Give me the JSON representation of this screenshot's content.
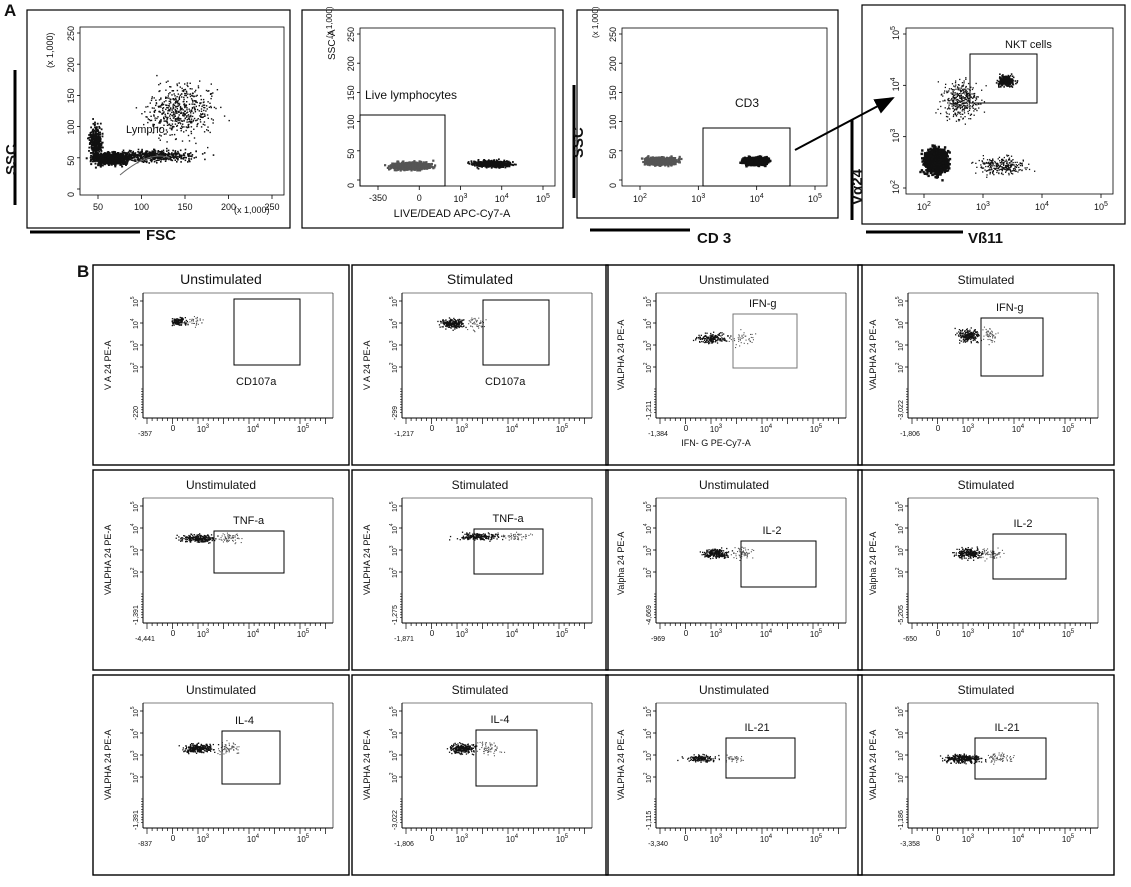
{
  "panel_a": {
    "letter": "A",
    "plots": [
      {
        "id": "a1",
        "top_tick": "250",
        "scale_y": "(x 1,000)",
        "scale_x": "(x 1,000)",
        "y_ticks": [
          "250",
          "200",
          "150",
          "100",
          "50",
          "0"
        ],
        "x_ticks": [
          "50",
          "100",
          "150",
          "200",
          "250"
        ],
        "gate_label": "Lympho",
        "outer_y": "SSC",
        "outer_x": "FSC"
      },
      {
        "id": "a2",
        "scale_y": "(x 1,000)",
        "y_title": "SSC-A",
        "y_ticks": [
          "250",
          "200",
          "150",
          "100",
          "50",
          "0"
        ],
        "x_ticks": [
          "-350",
          "0",
          "10",
          "10",
          "10"
        ],
        "x_exps": [
          "",
          "",
          "3",
          "4",
          "5"
        ],
        "x_title": "LIVE/DEAD APC-Cy7-A",
        "gate_label": "Live lymphocytes"
      },
      {
        "id": "a3",
        "scale_y": "(x 1,000)",
        "y_ticks": [
          "250",
          "200",
          "150",
          "100",
          "50",
          "0"
        ],
        "x_ticks": [
          "10",
          "10",
          "10",
          "10"
        ],
        "x_exps": [
          "2",
          "3",
          "4",
          "5"
        ],
        "gate_label": "CD3",
        "outer_y": "SSC",
        "outer_x": "CD 3"
      },
      {
        "id": "a4",
        "y_ticks": [
          "10",
          "10",
          "10",
          "10"
        ],
        "y_exps": [
          "5",
          "4",
          "3",
          "2"
        ],
        "x_ticks": [
          "10",
          "10",
          "10",
          "10"
        ],
        "x_exps": [
          "2",
          "3",
          "4",
          "5"
        ],
        "gate_label": "NKT cells",
        "outer_y": "Vα24",
        "outer_x": "Vß11"
      }
    ]
  },
  "panel_b": {
    "letter": "B",
    "plots": [
      {
        "title": "Unstimulated",
        "gate": "CD107a",
        "y_title": "V A 24 PE-A",
        "y_bottom": "-220",
        "x_left": "-357",
        "x_title": ""
      },
      {
        "title": "Stimulated",
        "gate": "CD107a",
        "y_title": "V A 24 PE-A",
        "y_bottom": "-299",
        "x_left": "-1,217",
        "x_title": ""
      },
      {
        "title": "Unstimulated",
        "gate": "IFN-g",
        "y_title": "VALPHA 24 PE-A",
        "y_bottom": "-1,211",
        "x_left": "-1,384",
        "x_title": "IFN- G PE-Cy7-A"
      },
      {
        "title": "Stimulated",
        "gate": "IFN-g",
        "y_title": "VALPHA 24 PE-A",
        "y_bottom": "-3,022",
        "x_left": "-1,806",
        "x_title": ""
      },
      {
        "title": "Unstimulated",
        "gate": "TNF-a",
        "y_title": "VALPHA 24 PE-A",
        "y_bottom": "-1,391",
        "x_left": "-4,441",
        "x_title": ""
      },
      {
        "title": "Stimulated",
        "gate": "TNF-a",
        "y_title": "VALPHA 24 PE-A",
        "y_bottom": "-1,275",
        "x_left": "-1,871",
        "x_title": ""
      },
      {
        "title": "Unstimulated",
        "gate": "IL-2",
        "y_title": "Valpha 24 PE-A",
        "y_bottom": "-4,669",
        "x_left": "-969",
        "x_title": ""
      },
      {
        "title": "Stimulated",
        "gate": "IL-2",
        "y_title": "Valpha 24 PE-A",
        "y_bottom": "-5,205",
        "x_left": "-650",
        "x_title": ""
      },
      {
        "title": "Unstimulated",
        "gate": "IL-4",
        "y_title": "VALPHA 24 PE-A",
        "y_bottom": "-1,391",
        "x_left": "-837",
        "x_title": ""
      },
      {
        "title": "Stimulated",
        "gate": "IL-4",
        "y_title": "VALPHA 24 PE-A",
        "y_bottom": "-3,022",
        "x_left": "-1,806",
        "x_title": ""
      },
      {
        "title": "Unstimulated",
        "gate": "IL-21",
        "y_title": "VALPHA 24 PE-A",
        "y_bottom": "-1,115",
        "x_left": "-3,340",
        "x_title": ""
      },
      {
        "title": "Stimulated",
        "gate": "IL-21",
        "y_title": "VALPHA 24 PE-A",
        "y_bottom": "-1,186",
        "x_left": "-3,358",
        "x_title": ""
      }
    ],
    "log_base": "10",
    "log_exps": [
      "2",
      "3",
      "4",
      "5"
    ],
    "neg_exp": "3",
    "zero": "0"
  }
}
